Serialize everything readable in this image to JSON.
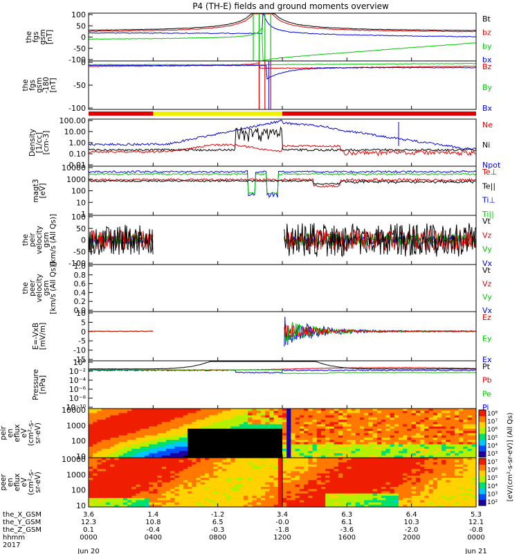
{
  "title": "P4 (TH-E) fields and ground moments overview",
  "colors": {
    "black": "#000000",
    "red": "#e00000",
    "green": "#00c800",
    "blue": "#0000e0",
    "yellow": "#f0f000"
  },
  "chart_data": [
    {
      "type": "line",
      "id": "fgs",
      "ylabel": [
        "the",
        "fgs",
        "gsm",
        "[nT]"
      ],
      "ylim": [
        -100,
        100
      ],
      "yticks": [
        "100",
        "50",
        "0",
        "-50",
        "-100"
      ],
      "series": [
        {
          "name": "Bt",
          "color": "black"
        },
        {
          "name": "bz",
          "color": "red"
        },
        {
          "name": "by",
          "color": "green"
        },
        {
          "name": "bx",
          "color": "blue"
        }
      ]
    },
    {
      "type": "line",
      "id": "fgs2",
      "ylabel": [
        "the",
        "fgs",
        "gsm",
        "-180",
        "[nT]"
      ],
      "ylim": [
        -120,
        10
      ],
      "yticks": [
        "0",
        "-50",
        "-100"
      ],
      "series": [
        {
          "name": "Bz",
          "color": "red"
        },
        {
          "name": "By",
          "color": "green"
        },
        {
          "name": "Bx",
          "color": "blue"
        }
      ]
    },
    {
      "type": "line",
      "id": "density",
      "ylabel": [
        "Density",
        "[1/cc]",
        "[cm-3]"
      ],
      "scale": "log",
      "ylim": [
        0.01,
        100
      ],
      "yticks": [
        "100.00",
        "10.00",
        "1.00",
        "0.10",
        "0.01"
      ],
      "series": [
        {
          "name": "Ne",
          "color": "red"
        },
        {
          "name": "Ni",
          "color": "black"
        },
        {
          "name": "Npot",
          "color": "blue"
        }
      ]
    },
    {
      "type": "line",
      "id": "temp",
      "ylabel": [
        "magt3",
        "[eV]"
      ],
      "scale": "log",
      "ylim": [
        1,
        10000
      ],
      "yticks": [
        "10000",
        "1000",
        "100",
        "10",
        "1"
      ],
      "series": [
        {
          "name": "Te⊥",
          "color": "red"
        },
        {
          "name": "Te||",
          "color": "black"
        },
        {
          "name": "Ti⊥",
          "color": "blue"
        },
        {
          "name": "Ti||",
          "color": "green"
        }
      ]
    },
    {
      "type": "line",
      "id": "peir_v",
      "ylabel": [
        "the",
        "peir",
        "velocity",
        "gsm",
        "[km/s (All Qs)]"
      ],
      "ylim": [
        -100,
        100
      ],
      "yticks": [
        "100",
        "50",
        "0",
        "-50",
        "-100"
      ],
      "series": [
        {
          "name": "Vt",
          "color": "black"
        },
        {
          "name": "Vz",
          "color": "red"
        },
        {
          "name": "Vy",
          "color": "green"
        },
        {
          "name": "Vx",
          "color": "blue"
        }
      ]
    },
    {
      "type": "line",
      "id": "peer_v",
      "ylabel": [
        "the",
        "peer",
        "velocity",
        "gsm",
        "[km/s (All Qs)]"
      ],
      "ylim": [
        0,
        1
      ],
      "yticks": [
        "1.0",
        "0.8",
        "0.6",
        "0.4",
        "0.2",
        "0.0"
      ],
      "series": [
        {
          "name": "Vt",
          "color": "black"
        },
        {
          "name": "Vz",
          "color": "red"
        },
        {
          "name": "Vy",
          "color": "green"
        },
        {
          "name": "Vx",
          "color": "blue"
        }
      ]
    },
    {
      "type": "line",
      "id": "efield",
      "ylabel": [
        "E=-VxB",
        "[mV/m]"
      ],
      "ylim": [
        -15,
        10
      ],
      "yticks": [
        "10",
        "5",
        "0",
        "-5",
        "-10",
        "-15"
      ],
      "series": [
        {
          "name": "Ez",
          "color": "red"
        },
        {
          "name": "Ey",
          "color": "green"
        },
        {
          "name": "Ex",
          "color": "blue"
        }
      ]
    },
    {
      "type": "line",
      "id": "pressure",
      "ylabel": [
        "Pressure",
        "[nPa]"
      ],
      "scale": "log",
      "yticks": [
        "10⁰",
        "10⁻²",
        "10⁻⁴",
        "10⁻⁶",
        "10⁻⁸",
        "10⁻¹⁰"
      ],
      "series": [
        {
          "name": "Pt",
          "color": "black"
        },
        {
          "name": "Pb",
          "color": "red"
        },
        {
          "name": "Pe",
          "color": "green"
        },
        {
          "name": "Pi",
          "color": "blue"
        }
      ]
    },
    {
      "type": "heatmap",
      "id": "peir_spec",
      "ylabel": [
        "the",
        "peir",
        "en",
        "eflux",
        "eV",
        "(cm²-s-",
        "sr-eV)"
      ],
      "scale": "log",
      "yticks": [
        "10000",
        "1000",
        "100",
        "10"
      ]
    },
    {
      "type": "heatmap",
      "id": "peer_spec",
      "ylabel": [
        "the",
        "peer",
        "en",
        "eflux",
        "eV",
        "(cm²-s-",
        "sr-eV)"
      ],
      "scale": "log",
      "yticks": [
        "10000",
        "1000",
        "100",
        "10"
      ]
    }
  ],
  "colorbar": {
    "label": "[eV/(cm²-s-sr-eV)] (All Qs)",
    "upper_ticks": [
      "10⁸",
      "10⁷",
      "10⁶",
      "10⁵",
      "10⁴",
      "10³"
    ],
    "lower_ticks": [
      "10⁷",
      "10⁶",
      "10⁵",
      "10⁴",
      "10³",
      "10²"
    ]
  },
  "x_axis": {
    "row_labels": [
      "the_X_GSM",
      "the_Y_GSM",
      "the_Z_GSM",
      "hhmm",
      "2017"
    ],
    "columns": [
      {
        "x": "3.6",
        "y": "12.3",
        "z": "0.1",
        "hhmm": "0000",
        "date": "Jun 20"
      },
      {
        "x": "1.4",
        "y": "10.8",
        "z": "-0.4",
        "hhmm": "0400",
        "date": ""
      },
      {
        "x": "-1.2",
        "y": "6.5",
        "z": "-0.3",
        "hhmm": "0800",
        "date": ""
      },
      {
        "x": "3.4",
        "y": "-0.0",
        "z": "-1.8",
        "hhmm": "1200",
        "date": ""
      },
      {
        "x": "6.3",
        "y": "6.1",
        "z": "-3.6",
        "hhmm": "1600",
        "date": ""
      },
      {
        "x": "6.4",
        "y": "10.3",
        "z": "-2.0",
        "hhmm": "2000",
        "date": ""
      },
      {
        "x": "5.3",
        "y": "12.1",
        "z": "-0.8",
        "hhmm": "0000",
        "date": "Jun 21"
      }
    ]
  },
  "mode_bar": {
    "segments": [
      {
        "from": "0000",
        "to": "0400",
        "color": "red"
      },
      {
        "from": "0400",
        "to": "1200",
        "color": "yellow"
      },
      {
        "from": "1200",
        "to": "0000",
        "color": "red"
      }
    ]
  }
}
